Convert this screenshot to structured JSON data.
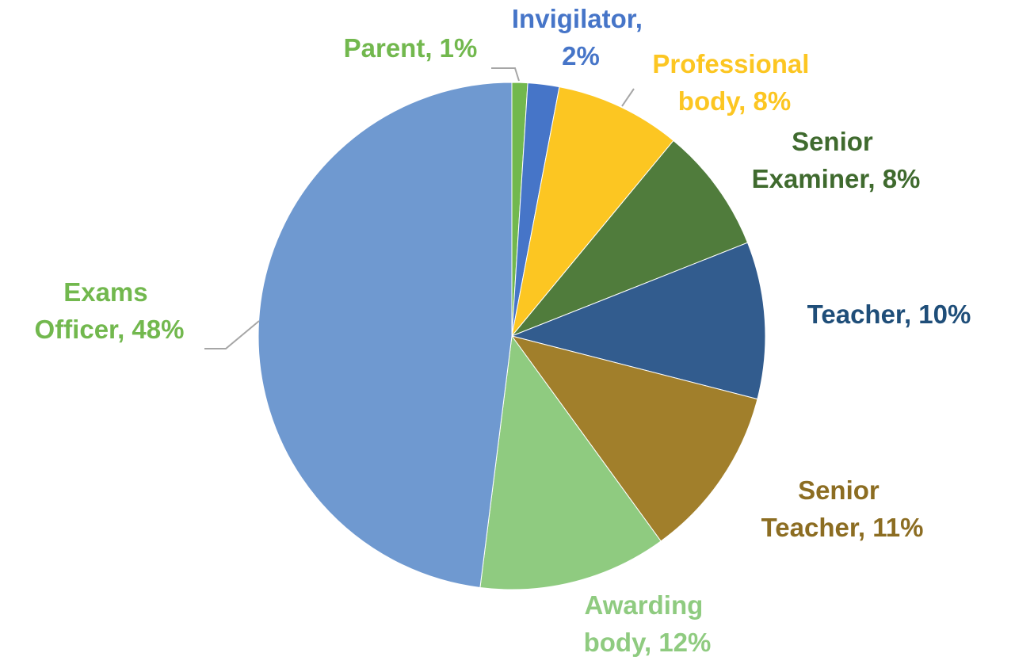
{
  "chart_data": {
    "type": "pie",
    "values": [
      1,
      2,
      8,
      8,
      10,
      11,
      12,
      48
    ],
    "value_labels": [
      "Parent, 1%",
      "Invigilator, 2%",
      "Professional body, 8%",
      "Senior Examiner, 8%",
      "Teacher, 10%",
      "Senior Teacher, 11%",
      "Awarding body, 12%",
      "Exams Officer, 48%"
    ],
    "colors": [
      "#72b84e",
      "#4675c8",
      "#fcc622",
      "#507c3c",
      "#325c8e",
      "#a17f2b",
      "#8fcb80",
      "#6f99d0"
    ],
    "label_colors": [
      "#72b84e",
      "#4675c8",
      "#fcc622",
      "#3f6a2e",
      "#1f4e79",
      "#8c6d22",
      "#8fcb80",
      "#72b84e"
    ]
  }
}
